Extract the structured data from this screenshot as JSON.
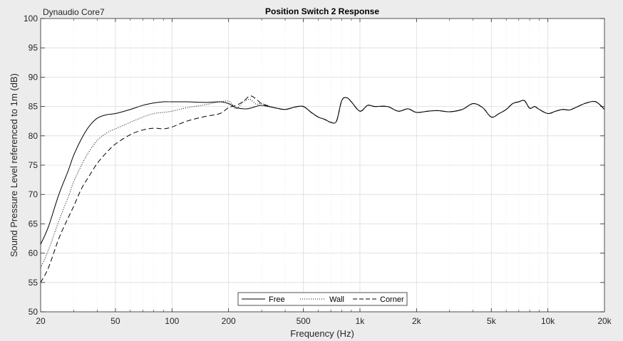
{
  "chart_data": {
    "type": "line",
    "title": "Position Switch 2 Response",
    "subtitle": "Dynaudio Core7",
    "xlabel": "Frequency (Hz)",
    "ylabel": "Sound Pressure Level referenced to 1m (dB)",
    "xscale": "log",
    "xlim": [
      20,
      20000
    ],
    "ylim": [
      50,
      100
    ],
    "grid": "on",
    "legend_position": "bottom-center",
    "x_ticks": [
      20,
      50,
      100,
      200,
      500,
      1000,
      2000,
      5000,
      10000,
      20000
    ],
    "x_tick_labels": [
      "20",
      "50",
      "100",
      "200",
      "500",
      "1k",
      "2k",
      "5k",
      "10k",
      "20k"
    ],
    "y_ticks": [
      50,
      55,
      60,
      65,
      70,
      75,
      80,
      85,
      90,
      95,
      100
    ],
    "y_tick_labels": [
      "50",
      "55",
      "60",
      "65",
      "70",
      "75",
      "80",
      "85",
      "90",
      "95",
      "100"
    ],
    "series": [
      {
        "name": "Free",
        "style": "solid",
        "x": [
          20,
          22,
          25,
          28,
          30,
          33,
          36,
          40,
          45,
          50,
          60,
          70,
          80,
          90,
          100,
          120,
          150,
          180,
          200,
          220,
          250,
          280,
          300,
          350,
          400,
          450,
          500,
          550,
          600,
          650,
          700,
          750,
          800,
          850,
          900,
          1000,
          1100,
          1200,
          1400,
          1600,
          1800,
          2000,
          2300,
          2600,
          3000,
          3500,
          4000,
          4500,
          5000,
          5500,
          6000,
          6500,
          7000,
          7500,
          8000,
          8500,
          9000,
          10000,
          11000,
          12000,
          13000,
          14000,
          16000,
          18000,
          20000
        ],
        "y": [
          61.5,
          64.5,
          70,
          74,
          76.7,
          79.5,
          81.5,
          83,
          83.6,
          83.8,
          84.5,
          85.2,
          85.6,
          85.8,
          85.8,
          85.8,
          85.7,
          85.8,
          85.5,
          84.8,
          84.6,
          85.0,
          85.2,
          84.8,
          84.5,
          84.9,
          85.0,
          84.0,
          83.2,
          82.8,
          82.3,
          82.5,
          86.0,
          86.5,
          85.8,
          84.2,
          85.2,
          85.0,
          85.0,
          84.2,
          84.6,
          84.0,
          84.2,
          84.3,
          84.1,
          84.5,
          85.5,
          84.8,
          83.2,
          83.8,
          84.5,
          85.5,
          85.8,
          86.0,
          84.7,
          85.0,
          84.5,
          83.8,
          84.2,
          84.5,
          84.4,
          84.8,
          85.6,
          85.8,
          84.5
        ]
      },
      {
        "name": "Wall",
        "style": "dotted",
        "x": [
          20,
          22,
          25,
          28,
          30,
          33,
          36,
          40,
          45,
          50,
          60,
          70,
          80,
          90,
          100,
          120,
          150,
          180,
          200,
          210,
          220,
          240,
          260,
          280,
          300,
          350,
          400,
          450,
          500,
          550,
          600,
          650,
          700,
          750,
          800,
          850,
          900,
          1000,
          1100,
          1200,
          1400,
          1600,
          1800,
          2000,
          2300,
          2600,
          3000,
          3500,
          4000,
          4500,
          5000,
          5500,
          6000,
          6500,
          7000,
          7500,
          8000,
          8500,
          9000,
          10000,
          11000,
          12000,
          13000,
          14000,
          16000,
          18000,
          20000
        ],
        "y": [
          57.5,
          60.5,
          65.5,
          69.5,
          72.2,
          75,
          77.2,
          79.2,
          80.5,
          81.2,
          82.3,
          83.2,
          83.8,
          84.0,
          84.2,
          84.8,
          85.3,
          85.8,
          85.9,
          85.3,
          84.6,
          85.8,
          86.2,
          85.4,
          85.5,
          84.8,
          84.5,
          84.9,
          85.0,
          84.0,
          83.2,
          82.8,
          82.3,
          82.5,
          86.0,
          86.5,
          85.8,
          84.2,
          85.2,
          85.0,
          85.0,
          84.2,
          84.6,
          84.0,
          84.2,
          84.3,
          84.1,
          84.5,
          85.5,
          84.8,
          83.2,
          83.8,
          84.5,
          85.5,
          85.8,
          86.0,
          84.7,
          85.0,
          84.5,
          83.8,
          84.2,
          84.5,
          84.4,
          84.8,
          85.6,
          85.8,
          84.5
        ]
      },
      {
        "name": "Corner",
        "style": "dashed",
        "x": [
          20,
          22,
          25,
          28,
          30,
          33,
          36,
          40,
          45,
          50,
          60,
          70,
          80,
          90,
          100,
          120,
          150,
          180,
          200,
          220,
          240,
          260,
          280,
          300,
          350,
          400,
          450,
          500,
          550,
          600,
          650,
          700,
          750,
          800,
          850,
          900,
          1000,
          1100,
          1200,
          1400,
          1600,
          1800,
          2000,
          2300,
          2600,
          3000,
          3500,
          4000,
          4500,
          5000,
          5500,
          6000,
          6500,
          7000,
          7500,
          8000,
          8500,
          9000,
          10000,
          11000,
          12000,
          13000,
          14000,
          16000,
          18000,
          20000
        ],
        "y": [
          55.0,
          57.5,
          62.5,
          66.0,
          68.0,
          71.0,
          73.0,
          75.3,
          77.2,
          78.6,
          80.2,
          81.0,
          81.3,
          81.2,
          81.5,
          82.5,
          83.3,
          83.8,
          84.8,
          85.2,
          85.9,
          86.8,
          86.3,
          85.5,
          84.8,
          84.5,
          84.9,
          85.0,
          84.0,
          83.2,
          82.8,
          82.3,
          82.5,
          86.0,
          86.5,
          85.8,
          84.2,
          85.2,
          85.0,
          85.0,
          84.2,
          84.6,
          84.0,
          84.2,
          84.3,
          84.1,
          84.5,
          85.5,
          84.8,
          83.2,
          83.8,
          84.5,
          85.5,
          85.8,
          86.0,
          84.7,
          85.0,
          84.5,
          83.8,
          84.2,
          84.5,
          84.4,
          84.8,
          85.6,
          85.8,
          84.5
        ]
      }
    ]
  }
}
